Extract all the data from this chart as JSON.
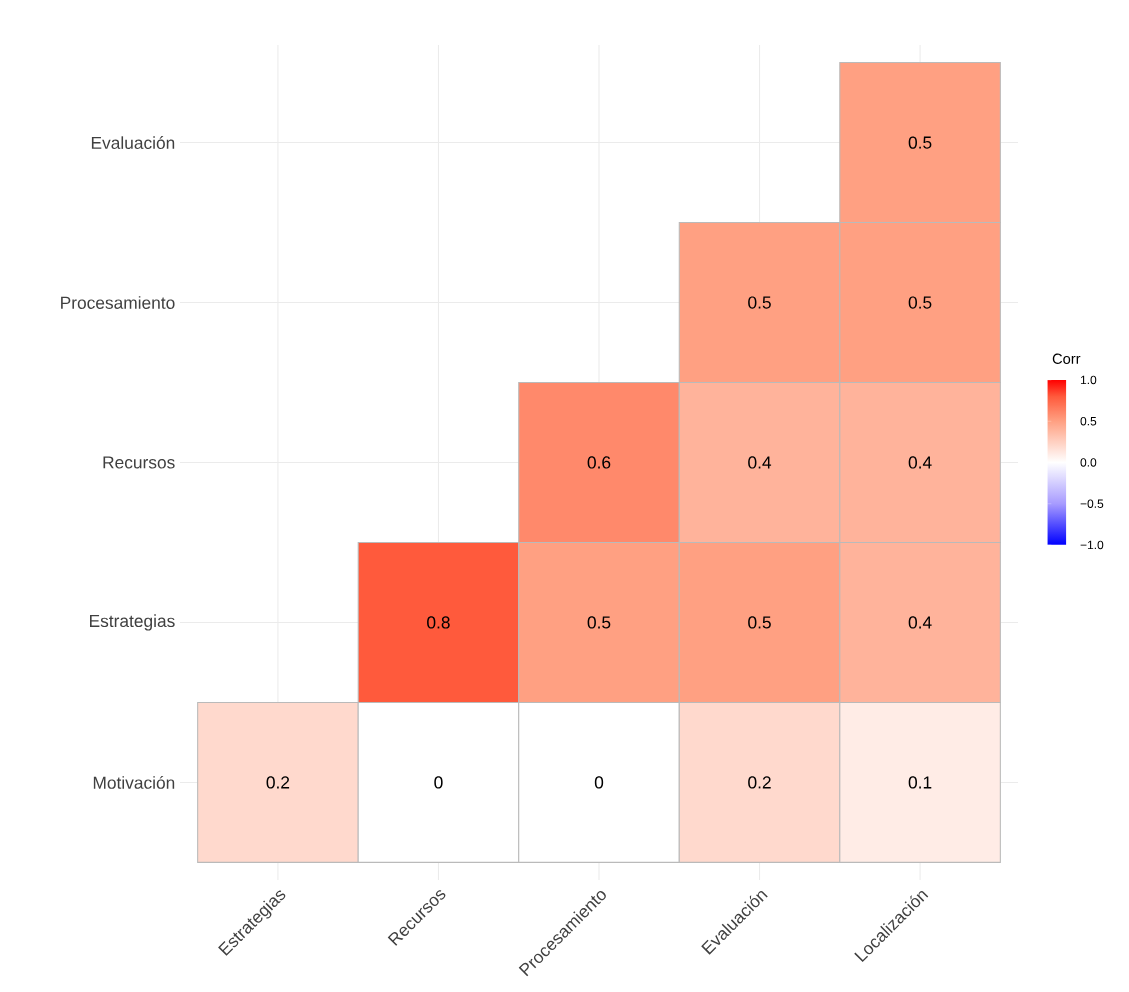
{
  "chart_data": {
    "type": "heatmap",
    "clabel": "Corr",
    "categories": [
      "Estrategias",
      "Recursos",
      "Procesamiento",
      "Evaluación",
      "Localización"
    ],
    "y_categories": [
      "Evaluación",
      "Procesamiento",
      "Recursos",
      "Estrategias",
      "Motivación"
    ],
    "cells": [
      [
        null,
        null,
        null,
        null,
        0.5
      ],
      [
        null,
        null,
        null,
        0.5,
        0.5
      ],
      [
        null,
        null,
        0.6,
        0.4,
        0.4
      ],
      [
        null,
        0.8,
        0.5,
        0.5,
        0.4
      ],
      [
        0.2,
        0,
        0,
        0.2,
        0.1
      ]
    ],
    "clim": [
      -1,
      1
    ],
    "cticks": [
      {
        "value": -1,
        "label": "−1.0"
      },
      {
        "value": -0.5,
        "label": "−0.5"
      },
      {
        "value": 0,
        "label": "0.0"
      },
      {
        "value": 0.5,
        "label": "0.5"
      },
      {
        "value": 1,
        "label": "1.0"
      }
    ],
    "data_labels": true,
    "grid": true
  }
}
